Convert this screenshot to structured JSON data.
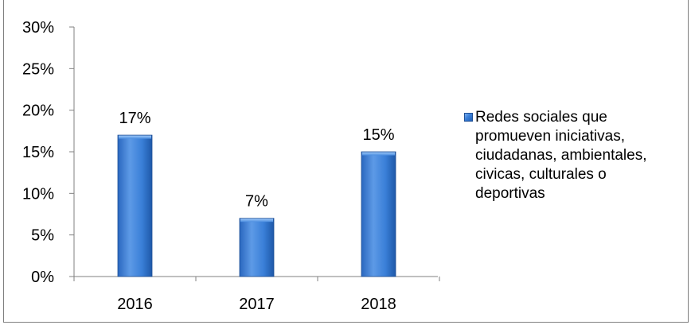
{
  "chart_data": {
    "type": "bar",
    "categories": [
      "2016",
      "2017",
      "2018"
    ],
    "series": [
      {
        "name": "Redes sociales que promueven iniciativas, ciudadanas, ambientales, civicas,  culturales o deportivas",
        "values": [
          17,
          7,
          15
        ],
        "data_labels": [
          "17%",
          "7%",
          "15%"
        ]
      }
    ],
    "ylim": [
      0,
      30
    ],
    "yticks": [
      "0%",
      "5%",
      "10%",
      "15%",
      "20%",
      "25%",
      "30%"
    ],
    "title": "",
    "xlabel": "",
    "ylabel": "",
    "grid": false,
    "legend_position": "right",
    "bar_color": "#3a7fd8"
  },
  "legend": {
    "lines": [
      "Redes sociales que",
      "promueven iniciativas,",
      "ciudadanas, ambientales,",
      "civicas,  culturales o",
      "deportivas"
    ]
  }
}
